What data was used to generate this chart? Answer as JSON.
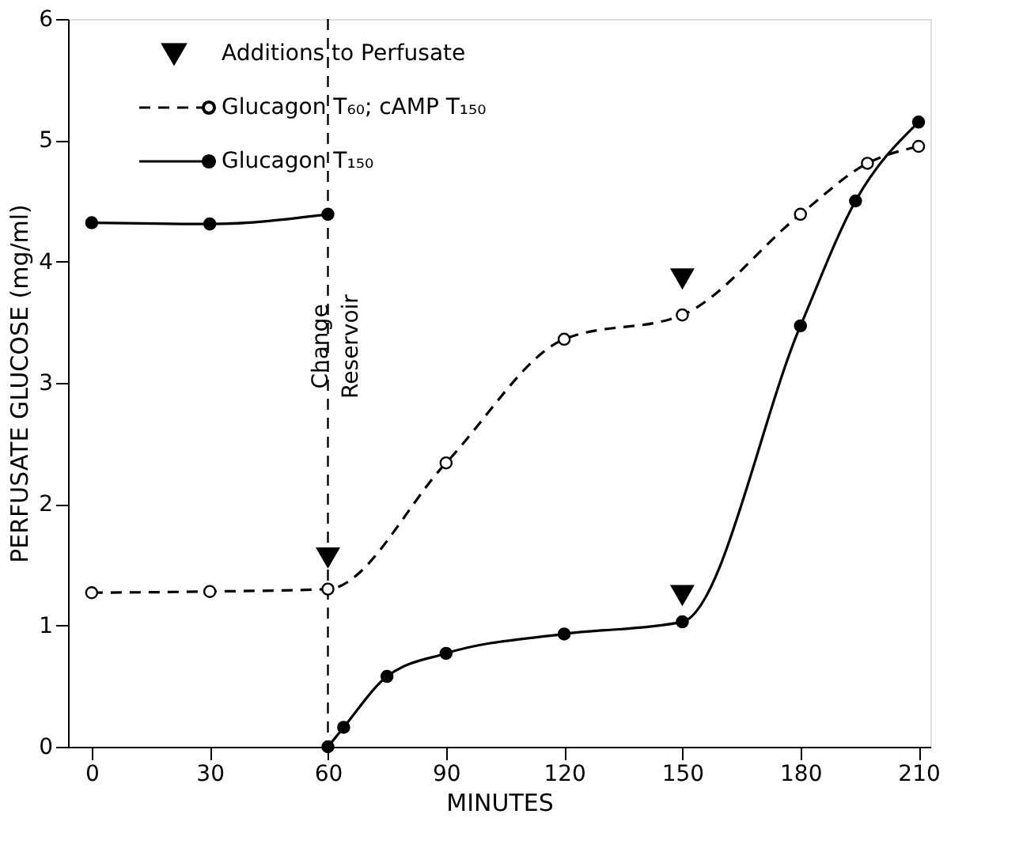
{
  "chart_data": {
    "type": "line",
    "xlabel": "MINUTES",
    "ylabel": "PERFUSATE GLUCOSE (mg/ml)",
    "xlim": [
      -6,
      213
    ],
    "ylim": [
      0,
      6
    ],
    "xticks": [
      0,
      30,
      60,
      90,
      120,
      150,
      180,
      210
    ],
    "yticks": [
      0,
      1,
      2,
      3,
      4,
      5,
      6
    ],
    "grid": false,
    "legend": "top left",
    "marker": "circle",
    "ref_lines": [
      {
        "axis": "x",
        "value": 60,
        "label": "Change Reservoir",
        "line_style": "dashed",
        "color": "#000000"
      }
    ],
    "series": [
      {
        "name": "Additions to Perfusate",
        "type": "scatter",
        "marker": "triangle",
        "color": "#000000",
        "x": [
          60,
          150,
          150
        ],
        "values": [
          1.56,
          1.25,
          3.86
        ]
      },
      {
        "name": "Glucagon T₆₀; cAMP T₁₅₀",
        "color": "#000000",
        "line_style": "dashed",
        "x": [
          0,
          30,
          60,
          90,
          120,
          150,
          180,
          197,
          210
        ],
        "values": [
          1.27,
          1.28,
          1.3,
          2.34,
          3.36,
          3.56,
          4.39,
          4.81,
          4.95
        ]
      },
      {
        "name": "Glucagon T₁₅₀",
        "color": "#000000",
        "line_style": "solid",
        "x": [
          0,
          30,
          60,
          60,
          64,
          75,
          90,
          120,
          150,
          180,
          194,
          210
        ],
        "values": [
          4.32,
          4.31,
          4.39,
          0,
          0.16,
          0.58,
          0.77,
          0.93,
          1.03,
          3.47,
          4.5,
          5.15
        ]
      }
    ]
  }
}
